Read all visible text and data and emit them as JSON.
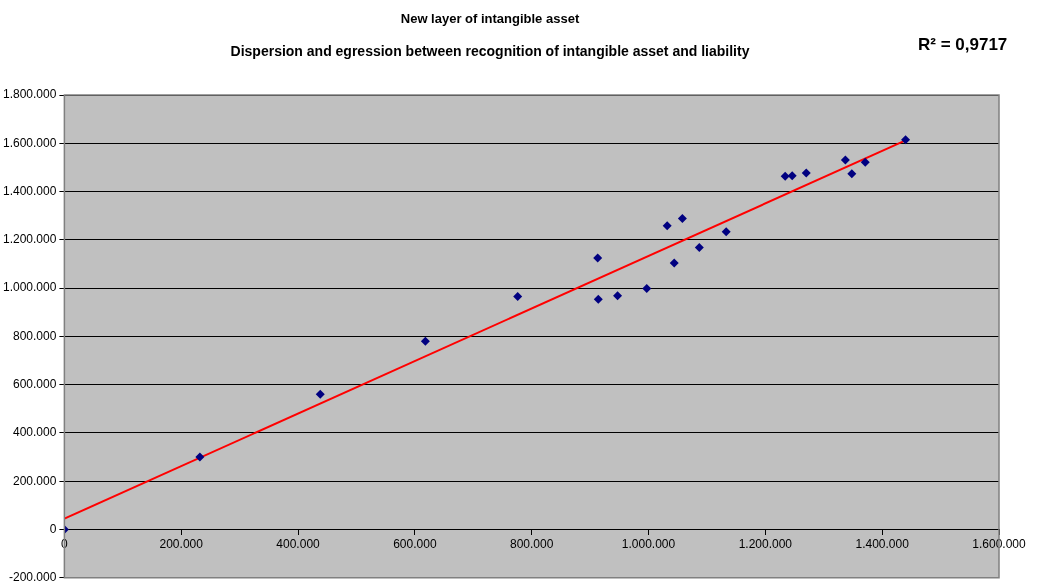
{
  "chart_data": {
    "type": "scatter",
    "title": "New layer of intangible asset",
    "subtitle": "Dispersion and egression between recognition of intangible asset and liability",
    "annotations": [
      "R² = 0,9717"
    ],
    "x": [
      0,
      232000,
      438000,
      618000,
      776000,
      913000,
      914000,
      947000,
      997000,
      1032000,
      1044000,
      1058000,
      1087000,
      1133000,
      1234000,
      1246000,
      1270000,
      1337000,
      1348000,
      1371000,
      1440000
    ],
    "series": [
      {
        "color": "#000080",
        "marker": "diamond",
        "values": [
          0,
          300000,
          560000,
          780000,
          965000,
          1125000,
          954000,
          968000,
          998000,
          1258000,
          1104000,
          1288000,
          1168000,
          1234000,
          1463000,
          1466000,
          1477000,
          1531000,
          1474000,
          1521000,
          1615000
        ]
      },
      {
        "type": "line",
        "color": "#ff0000",
        "marker": "none",
        "x": [
          0,
          1440000
        ],
        "values": [
          45000,
          1612000
        ]
      }
    ],
    "xlim": [
      0,
      1600000
    ],
    "ylim": [
      -200000,
      1800000
    ],
    "xticks": [
      0,
      {
        "value": 200000,
        "label": "200.000"
      },
      {
        "value": 400000,
        "label": "400.000"
      },
      {
        "value": 600000,
        "label": "600.000"
      },
      {
        "value": 800000,
        "label": "800.000"
      },
      {
        "value": 1000000,
        "label": "1.000.000"
      },
      {
        "value": 1200000,
        "label": "1.200.000"
      },
      {
        "value": 1400000,
        "label": "1.400.000"
      },
      {
        "value": 1600000,
        "label": "1.600.000"
      }
    ],
    "yticks": [
      {
        "value": -200000,
        "label": "-200.000"
      },
      0,
      {
        "value": 200000,
        "label": "200.000"
      },
      {
        "value": 400000,
        "label": "400.000"
      },
      {
        "value": 600000,
        "label": "600.000"
      },
      {
        "value": 800000,
        "label": "800.000"
      },
      {
        "value": 1000000,
        "label": "1.000.000"
      },
      {
        "value": 1200000,
        "label": "1.200.000"
      },
      {
        "value": 1400000,
        "label": "1.400.000"
      },
      {
        "value": 1600000,
        "label": "1.600.000"
      },
      {
        "value": 1800000,
        "label": "1.800.000"
      }
    ],
    "grid": "y",
    "legend": false
  }
}
